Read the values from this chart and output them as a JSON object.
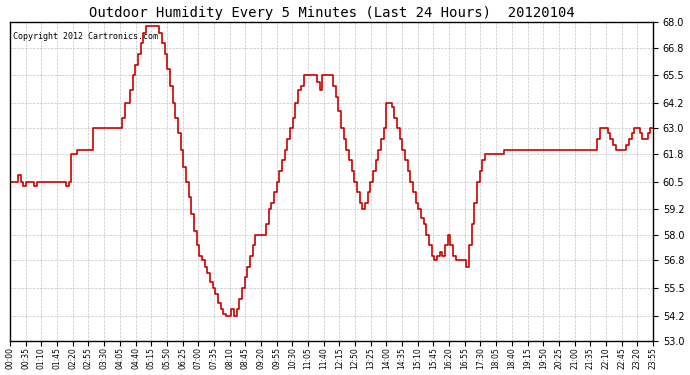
{
  "title": "Outdoor Humidity Every 5 Minutes (Last 24 Hours)  20120104",
  "copyright_text": "Copyright 2012 Cartronics.com",
  "line_color": "#cc0000",
  "background_color": "#ffffff",
  "grid_color": "#aaaaaa",
  "ylim": [
    53.0,
    68.0
  ],
  "yticks": [
    53.0,
    54.2,
    55.5,
    56.8,
    58.0,
    59.2,
    60.5,
    61.8,
    63.0,
    64.2,
    65.5,
    66.8,
    68.0
  ],
  "xtick_labels": [
    "00:00",
    "00:35",
    "01:10",
    "01:45",
    "02:20",
    "02:55",
    "03:30",
    "04:05",
    "04:40",
    "05:15",
    "05:50",
    "06:25",
    "07:00",
    "07:35",
    "08:10",
    "08:45",
    "09:20",
    "09:55",
    "10:30",
    "11:05",
    "11:40",
    "12:15",
    "12:50",
    "13:25",
    "14:00",
    "14:35",
    "15:10",
    "15:45",
    "16:20",
    "16:55",
    "17:30",
    "18:05",
    "18:40",
    "19:15",
    "19:50",
    "20:25",
    "21:00",
    "21:35",
    "22:10",
    "22:45",
    "23:20",
    "23:55"
  ],
  "humidity_values": [
    60.5,
    60.5,
    60.5,
    60.8,
    60.5,
    60.3,
    60.5,
    60.5,
    60.5,
    60.3,
    60.5,
    60.5,
    60.5,
    60.5,
    60.5,
    60.5,
    60.5,
    60.5,
    60.5,
    60.5,
    60.5,
    60.3,
    60.5,
    61.8,
    61.8,
    62.0,
    62.0,
    62.0,
    62.0,
    62.0,
    62.0,
    63.0,
    63.0,
    63.0,
    63.0,
    63.0,
    63.0,
    63.0,
    63.0,
    63.0,
    63.0,
    63.0,
    63.5,
    64.2,
    64.2,
    64.8,
    65.5,
    66.0,
    66.5,
    67.0,
    67.5,
    67.8,
    67.8,
    67.8,
    67.8,
    67.8,
    67.5,
    67.0,
    66.5,
    65.8,
    65.0,
    64.2,
    63.5,
    62.8,
    62.0,
    61.2,
    60.5,
    59.8,
    59.0,
    58.2,
    57.5,
    57.0,
    56.8,
    56.5,
    56.2,
    55.8,
    55.5,
    55.2,
    54.8,
    54.5,
    54.3,
    54.2,
    54.2,
    54.5,
    54.2,
    54.5,
    55.0,
    55.5,
    56.0,
    56.5,
    57.0,
    57.5,
    58.0,
    58.0,
    58.0,
    58.0,
    58.5,
    59.2,
    59.5,
    60.0,
    60.5,
    61.0,
    61.5,
    62.0,
    62.5,
    63.0,
    63.5,
    64.2,
    64.8,
    65.0,
    65.5,
    65.5,
    65.5,
    65.5,
    65.5,
    65.2,
    64.8,
    65.5,
    65.5,
    65.5,
    65.5,
    65.0,
    64.5,
    63.8,
    63.0,
    62.5,
    62.0,
    61.5,
    61.0,
    60.5,
    60.0,
    59.5,
    59.2,
    59.5,
    60.0,
    60.5,
    61.0,
    61.5,
    62.0,
    62.5,
    63.0,
    64.2,
    64.2,
    64.0,
    63.5,
    63.0,
    62.5,
    62.0,
    61.5,
    61.0,
    60.5,
    60.0,
    59.5,
    59.2,
    58.8,
    58.5,
    58.0,
    57.5,
    57.0,
    56.8,
    57.0,
    57.2,
    57.0,
    57.5,
    58.0,
    57.5,
    57.0,
    56.8,
    56.8,
    56.8,
    56.8,
    56.5,
    57.5,
    58.5,
    59.5,
    60.5,
    61.0,
    61.5,
    61.8,
    61.8,
    61.8,
    61.8,
    61.8,
    61.8,
    61.8,
    62.0,
    62.0,
    62.0,
    62.0,
    62.0,
    62.0,
    62.0,
    62.0,
    62.0,
    62.0,
    62.0,
    62.0,
    62.0,
    62.0,
    62.0,
    62.0,
    62.0,
    62.0,
    62.0,
    62.0,
    62.0,
    62.0,
    62.0,
    62.0,
    62.0,
    62.0,
    62.0,
    62.0,
    62.0,
    62.0,
    62.0,
    62.0,
    62.0,
    62.0,
    62.0,
    62.5,
    63.0,
    63.0,
    63.0,
    62.8,
    62.5,
    62.2,
    62.0,
    62.0,
    62.0,
    62.0,
    62.2,
    62.5,
    62.8,
    63.0,
    63.0,
    62.8,
    62.5,
    62.5,
    62.8,
    63.0,
    63.0
  ]
}
